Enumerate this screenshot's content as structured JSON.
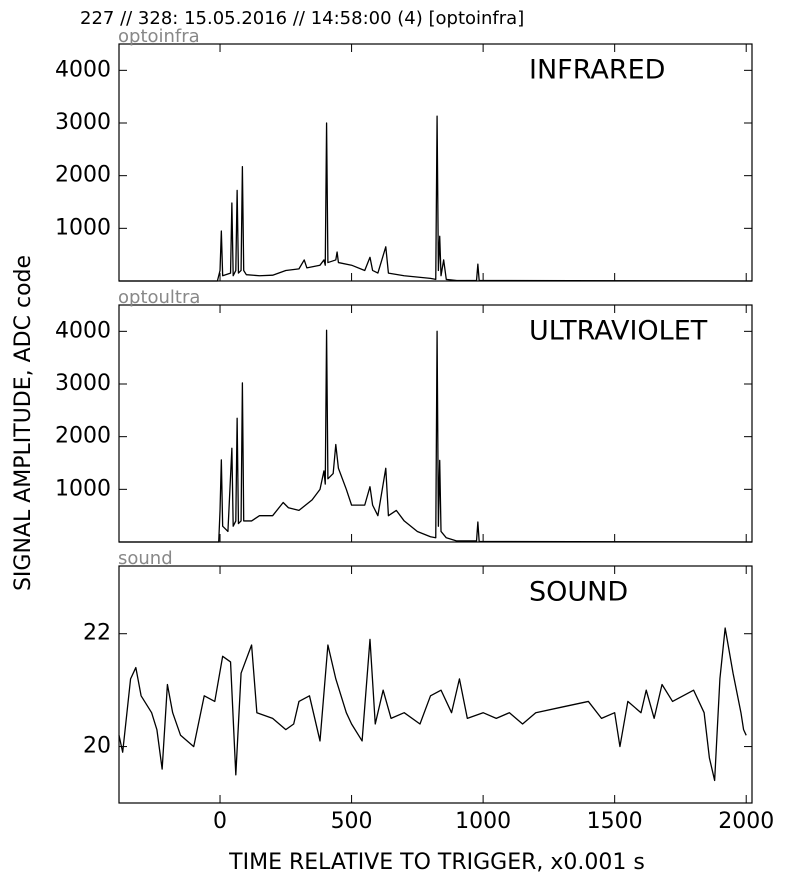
{
  "title": "227 // 328:   15.05.2016 // 14:58:00 (4)  [optoinfra]",
  "y_axis_label": "SIGNAL AMPLITUDE,  ADC code",
  "x_axis_label": "TIME RELATIVE TO TRIGGER,   x0.001 s",
  "chart_data": [
    {
      "type": "line",
      "label": "optoinfra",
      "annotation": "INFRARED",
      "color": "#000000",
      "xlim": [
        -384,
        2022
      ],
      "xticks": [
        0,
        500,
        1000,
        1500,
        2000
      ],
      "ylim": [
        0,
        4500
      ],
      "yticks": [
        1000,
        2000,
        3000,
        4000
      ],
      "x": [
        -384,
        -10,
        0,
        5,
        10,
        40,
        45,
        50,
        60,
        65,
        70,
        80,
        85,
        90,
        100,
        150,
        200,
        250,
        300,
        320,
        330,
        380,
        395,
        400,
        405,
        410,
        440,
        445,
        450,
        500,
        550,
        570,
        580,
        600,
        630,
        640,
        700,
        800,
        820,
        825,
        830,
        835,
        840,
        850,
        860,
        900,
        975,
        980,
        985,
        2022
      ],
      "values": [
        0,
        0,
        200,
        950,
        100,
        150,
        1480,
        100,
        200,
        1720,
        150,
        200,
        2170,
        200,
        120,
        100,
        110,
        200,
        230,
        400,
        250,
        300,
        400,
        300,
        3000,
        350,
        400,
        550,
        350,
        300,
        200,
        450,
        200,
        150,
        650,
        150,
        100,
        50,
        30,
        3130,
        200,
        850,
        100,
        400,
        30,
        10,
        10,
        320,
        10,
        0
      ]
    },
    {
      "type": "line",
      "label": "optoultra",
      "annotation": "ULTRAVIOLET",
      "color": "#000000",
      "xlim": [
        -384,
        2022
      ],
      "xticks": [
        0,
        500,
        1000,
        1500,
        2000
      ],
      "ylim": [
        0,
        4500
      ],
      "yticks": [
        1000,
        2000,
        3000,
        4000
      ],
      "x": [
        -384,
        -5,
        0,
        5,
        10,
        30,
        45,
        50,
        60,
        65,
        70,
        80,
        85,
        90,
        120,
        150,
        200,
        240,
        260,
        300,
        350,
        380,
        395,
        400,
        405,
        410,
        430,
        440,
        450,
        480,
        500,
        550,
        570,
        580,
        600,
        630,
        640,
        670,
        700,
        750,
        800,
        820,
        825,
        830,
        835,
        840,
        860,
        900,
        975,
        980,
        985,
        2022
      ],
      "values": [
        0,
        0,
        600,
        1560,
        300,
        200,
        1780,
        300,
        400,
        2350,
        350,
        400,
        3020,
        400,
        400,
        500,
        500,
        750,
        650,
        600,
        800,
        1000,
        1350,
        1100,
        4020,
        1200,
        1300,
        1850,
        1400,
        1000,
        700,
        700,
        1050,
        700,
        500,
        1400,
        500,
        600,
        400,
        200,
        100,
        80,
        4000,
        300,
        1550,
        200,
        80,
        20,
        20,
        380,
        10,
        0
      ]
    },
    {
      "type": "line",
      "label": "sound",
      "annotation": "SOUND",
      "color": "#000000",
      "xlim": [
        -384,
        2022
      ],
      "xticks": [
        0,
        500,
        1000,
        1500,
        2000
      ],
      "ylim": [
        19,
        23.2
      ],
      "yticks": [
        20,
        22
      ],
      "x": [
        -384,
        -370,
        -340,
        -320,
        -300,
        -260,
        -240,
        -220,
        -200,
        -180,
        -150,
        -100,
        -60,
        -20,
        10,
        40,
        60,
        80,
        120,
        140,
        200,
        250,
        280,
        300,
        340,
        380,
        410,
        440,
        480,
        500,
        540,
        570,
        590,
        620,
        650,
        700,
        760,
        800,
        840,
        880,
        910,
        940,
        1000,
        1050,
        1100,
        1150,
        1200,
        1300,
        1400,
        1450,
        1500,
        1520,
        1550,
        1600,
        1620,
        1650,
        1680,
        1720,
        1800,
        1840,
        1860,
        1880,
        1900,
        1920,
        1950,
        1980,
        1990,
        2000
      ],
      "values": [
        20.2,
        19.9,
        21.2,
        21.4,
        20.9,
        20.6,
        20.3,
        19.6,
        21.1,
        20.6,
        20.2,
        20.0,
        20.9,
        20.8,
        21.6,
        21.5,
        19.5,
        21.3,
        21.8,
        20.6,
        20.5,
        20.3,
        20.4,
        20.8,
        20.9,
        20.1,
        21.8,
        21.2,
        20.6,
        20.4,
        20.1,
        21.9,
        20.4,
        21.0,
        20.5,
        20.6,
        20.4,
        20.9,
        21.0,
        20.6,
        21.2,
        20.5,
        20.6,
        20.5,
        20.6,
        20.4,
        20.6,
        20.7,
        20.8,
        20.5,
        20.6,
        20.0,
        20.8,
        20.6,
        21.0,
        20.5,
        21.1,
        20.8,
        21.0,
        20.6,
        19.8,
        19.4,
        21.2,
        22.1,
        21.3,
        20.6,
        20.3,
        20.2
      ]
    }
  ]
}
